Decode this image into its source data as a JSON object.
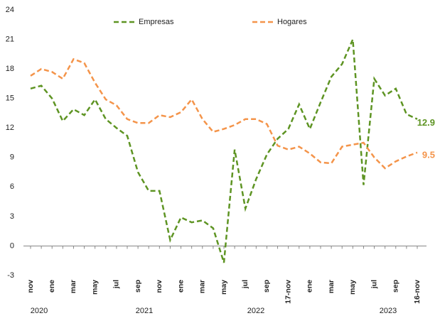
{
  "chart_data": {
    "type": "line",
    "categories": [
      "nov",
      null,
      "ene",
      null,
      "mar",
      null,
      "may",
      null,
      "jul",
      null,
      "sep",
      null,
      "nov",
      null,
      "ene",
      null,
      "mar",
      null,
      "may",
      null,
      "jul",
      null,
      "sep",
      null,
      "17-nov",
      null,
      "ene",
      null,
      "mar",
      null,
      "may",
      null,
      "jul",
      null,
      "sep",
      null,
      "16-nov"
    ],
    "year_labels": [
      "2020",
      "2021",
      "2022",
      "2023"
    ],
    "series": [
      {
        "name": "Empresas",
        "color": "#5e9423",
        "values": [
          16.0,
          16.3,
          15.0,
          12.7,
          13.9,
          13.3,
          14.9,
          12.9,
          12.0,
          11.2,
          7.5,
          5.6,
          5.6,
          0.6,
          2.9,
          2.4,
          2.6,
          1.8,
          -1.7,
          9.8,
          3.8,
          6.8,
          9.3,
          10.9,
          11.9,
          14.4,
          11.9,
          14.6,
          17.2,
          18.5,
          21.0,
          6.2,
          17.0,
          15.3,
          16.0,
          13.4,
          12.9
        ]
      },
      {
        "name": "Hogares",
        "color": "#f4944a",
        "values": [
          17.3,
          18.0,
          17.7,
          17.0,
          19.0,
          18.6,
          16.6,
          14.9,
          14.3,
          12.9,
          12.5,
          12.5,
          13.3,
          13.1,
          13.6,
          14.9,
          12.9,
          11.6,
          11.9,
          12.3,
          12.9,
          12.9,
          12.4,
          10.2,
          9.8,
          10.1,
          9.4,
          8.5,
          8.4,
          10.1,
          10.3,
          10.5,
          9.0,
          7.9,
          8.6,
          9.1,
          9.5
        ]
      }
    ],
    "ylim": [
      -3,
      24
    ],
    "yticks": [
      -3,
      0,
      3,
      6,
      9,
      12,
      15,
      18,
      21,
      24
    ]
  }
}
